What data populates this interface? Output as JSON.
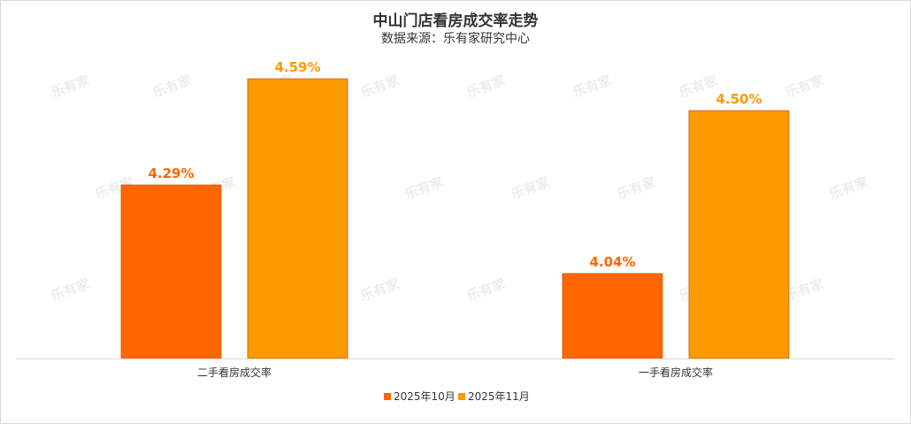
{
  "chart_data": {
    "type": "bar",
    "title": "中山门店看房成交率走势",
    "subtitle": "数据来源：乐有家研究中心",
    "categories": [
      "二手看房成交率",
      "一手看房成交率"
    ],
    "series": [
      {
        "name": "2025年10月",
        "values": [
          4.29,
          4.04
        ],
        "labels": [
          "4.29%",
          "4.04%"
        ],
        "color": "#ff6600"
      },
      {
        "name": "2025年11月",
        "values": [
          4.59,
          4.5
        ],
        "labels": [
          "4.59%",
          "4.50%"
        ],
        "color": "#ff9900"
      }
    ],
    "ylim": [
      3.8,
      4.62
    ],
    "grid": false,
    "legend": "bottom"
  },
  "watermark": {
    "text": "乐有家"
  },
  "colors": {
    "label_text_1": "#ff6600",
    "label_text_2": "#ff9900",
    "axis": "#d9d9d9"
  }
}
